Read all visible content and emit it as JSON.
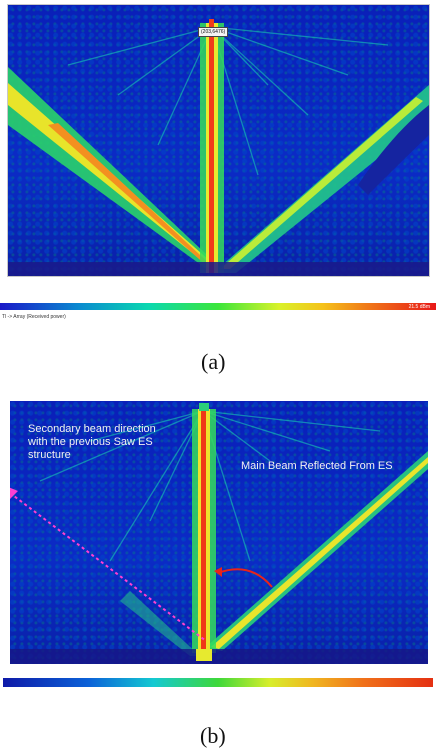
{
  "panel_a": {
    "marker_label": "(203,6476)",
    "colorbar_max_label": "21.5 dBm",
    "status_text": "Tl -> Array (Received power)"
  },
  "panel_b": {
    "annotation_secondary": "Secondary beam direction  with the  previous Saw ES structure",
    "annotation_main": "Main  Beam Reflected From ES"
  },
  "captions": {
    "a": "(a)",
    "b": "(b)"
  },
  "colors": {
    "background": "#0a1fb8",
    "beam_core": "#f23a1a",
    "beam_edge": "#36e24a",
    "dashed_line": "#ff3fd2"
  }
}
